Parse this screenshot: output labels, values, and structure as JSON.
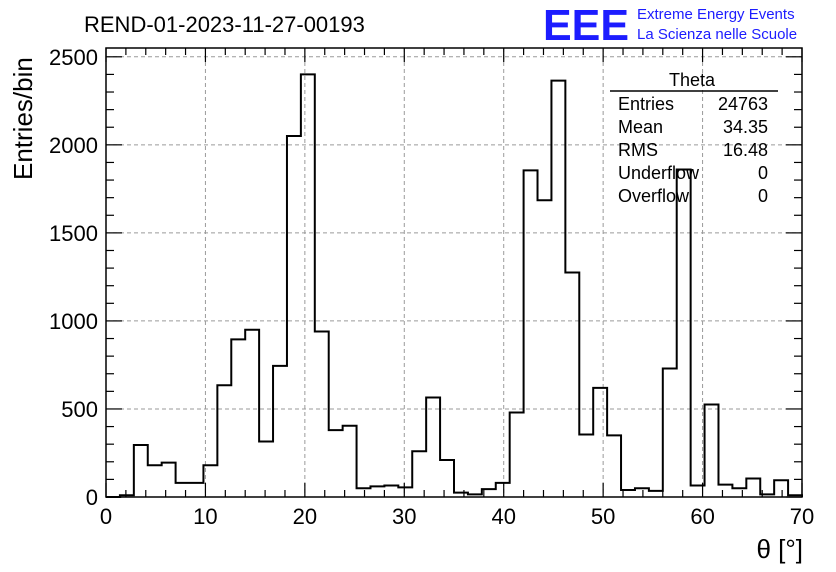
{
  "header": {
    "run_title": "REND-01-2023-11-27-00193",
    "logo": "EEE",
    "brand_line1": "Extreme Energy Events",
    "brand_line2": "La Scienza nelle Scuole"
  },
  "stats_box": {
    "name": "Theta",
    "rows": [
      {
        "label": "Entries",
        "value": "24763"
      },
      {
        "label": "Mean",
        "value": "34.35"
      },
      {
        "label": "RMS",
        "value": "16.48"
      },
      {
        "label": "Underflow",
        "value": "0"
      },
      {
        "label": "Overflow",
        "value": "0"
      }
    ]
  },
  "chart_data": {
    "type": "bar",
    "style": "step-histogram",
    "title": "REND-01-2023-11-27-00193",
    "xlabel": "θ [°]",
    "ylabel": "Entries/bin",
    "xlim": [
      0,
      70
    ],
    "ylim": [
      0,
      2550
    ],
    "bin_width": 1.4,
    "grid": true,
    "xticks": [
      0,
      10,
      20,
      30,
      40,
      50,
      60,
      70
    ],
    "yticks": [
      0,
      500,
      1000,
      1500,
      2000,
      2500
    ],
    "xtick_labels": [
      "0",
      "10",
      "20",
      "30",
      "40",
      "50",
      "60",
      "70"
    ],
    "ytick_labels": [
      "0",
      "500",
      "1000",
      "1500",
      "2000",
      "2500"
    ],
    "bin_starts": [
      0,
      1.4,
      2.8,
      4.2,
      5.6,
      7.0,
      8.4,
      9.8,
      11.2,
      12.6,
      14.0,
      15.4,
      16.8,
      18.2,
      19.6,
      21.0,
      22.4,
      23.8,
      25.2,
      26.6,
      28.0,
      29.4,
      30.8,
      32.2,
      33.6,
      35.0,
      36.4,
      37.8,
      39.2,
      40.6,
      42.0,
      43.4,
      44.8,
      46.2,
      47.6,
      49.0,
      50.4,
      51.8,
      53.2,
      54.6,
      56.0,
      57.4,
      58.8,
      60.2,
      61.6,
      63.0,
      64.4,
      65.8,
      67.2,
      68.6
    ],
    "values": [
      0,
      10,
      295,
      180,
      195,
      80,
      80,
      180,
      635,
      895,
      950,
      315,
      745,
      2050,
      2400,
      940,
      380,
      405,
      50,
      60,
      65,
      55,
      260,
      565,
      210,
      25,
      15,
      45,
      80,
      480,
      1855,
      1685,
      2365,
      1275,
      355,
      620,
      350,
      40,
      50,
      35,
      730,
      1860,
      65,
      525,
      70,
      50,
      105,
      15,
      95,
      10
    ]
  }
}
